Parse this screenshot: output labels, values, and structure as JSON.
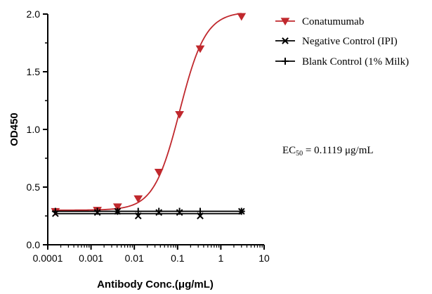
{
  "chart_data": {
    "type": "scatter",
    "title": "",
    "xlabel": "Antibody Conc.(μg/mL)",
    "ylabel": "OD450",
    "xscale": "log",
    "xlim": [
      0.0001,
      10
    ],
    "ylim": [
      0,
      2.0
    ],
    "x_ticks": [
      {
        "value": 0.0001,
        "label": "0.0001"
      },
      {
        "value": 0.001,
        "label": "0.001"
      },
      {
        "value": 0.01,
        "label": "0.01"
      },
      {
        "value": 0.1,
        "label": "0.1"
      },
      {
        "value": 1,
        "label": "1"
      },
      {
        "value": 10,
        "label": "10"
      }
    ],
    "y_ticks": [
      {
        "value": 0.0,
        "label": "0.0"
      },
      {
        "value": 0.5,
        "label": "0.5"
      },
      {
        "value": 1.0,
        "label": "1.0"
      },
      {
        "value": 1.5,
        "label": "1.5"
      },
      {
        "value": 2.0,
        "label": "2.0"
      }
    ],
    "legend_position": "top-right",
    "series": [
      {
        "name": "Conatumumab",
        "marker": "triangle-down",
        "color": "#c0282d",
        "x": [
          0.00015,
          0.0014,
          0.0041,
          0.0123,
          0.037,
          0.111,
          0.333,
          3.0
        ],
        "y": [
          0.29,
          0.3,
          0.33,
          0.4,
          0.63,
          1.13,
          1.7,
          1.98
        ],
        "fit": {
          "model": "4PL",
          "bottom": 0.3,
          "top": 2.02,
          "ec50": 0.1119,
          "hill": 1.45
        }
      },
      {
        "name": "Negative Control (IPI)",
        "marker": "x",
        "color": "#000000",
        "x": [
          0.00015,
          0.0014,
          0.0041,
          0.0123,
          0.037,
          0.111,
          0.333,
          3.0
        ],
        "y": [
          0.27,
          0.28,
          0.29,
          0.25,
          0.28,
          0.28,
          0.25,
          0.29
        ],
        "fit": {
          "model": "flat",
          "value": 0.27
        }
      },
      {
        "name": "Blank Control (1% Milk)",
        "marker": "plus",
        "color": "#000000",
        "x": [
          0.00015,
          0.0014,
          0.0041,
          0.0123,
          0.037,
          0.111,
          0.333,
          3.0
        ],
        "y": [
          0.29,
          0.29,
          0.29,
          0.29,
          0.29,
          0.29,
          0.29,
          0.29
        ],
        "fit": {
          "model": "flat",
          "value": 0.29
        }
      }
    ],
    "annotation": {
      "prefix": "EC",
      "subscript": "50",
      "text": " =  0.1119 μg/mL"
    }
  }
}
